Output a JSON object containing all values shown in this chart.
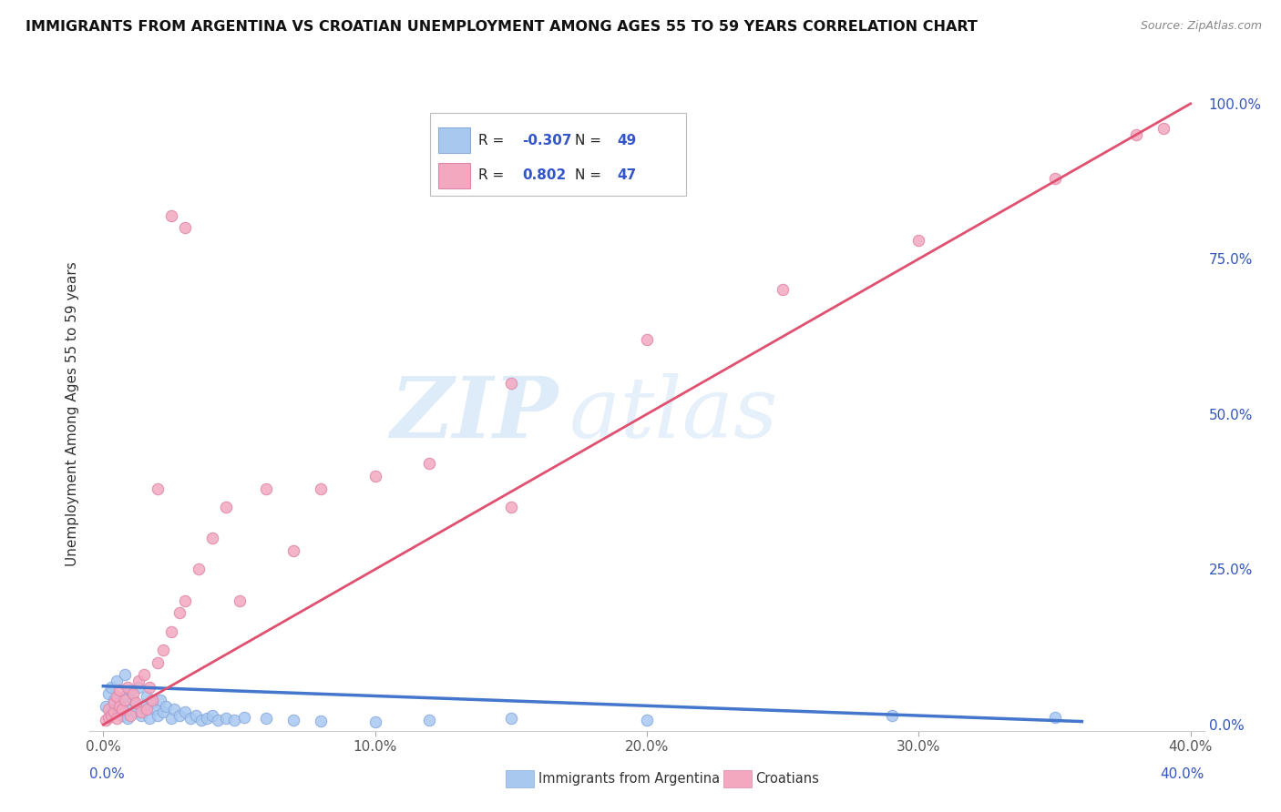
{
  "title": "IMMIGRANTS FROM ARGENTINA VS CROATIAN UNEMPLOYMENT AMONG AGES 55 TO 59 YEARS CORRELATION CHART",
  "source": "Source: ZipAtlas.com",
  "ylabel": "Unemployment Among Ages 55 to 59 years",
  "right_yticks": [
    "100.0%",
    "75.0%",
    "50.0%",
    "25.0%",
    "0.0%"
  ],
  "right_ytick_vals": [
    1.0,
    0.75,
    0.5,
    0.25,
    0.0
  ],
  "legend_entries": [
    {
      "color": "#a8c8f0",
      "label": "Immigrants from Argentina",
      "R": "-0.307",
      "N": "49"
    },
    {
      "color": "#f4a8c0",
      "label": "Croatians",
      "R": "0.802",
      "N": "47"
    }
  ],
  "watermark_zip": "ZIP",
  "watermark_atlas": "atlas",
  "argentina_scatter_x": [
    0.001,
    0.002,
    0.003,
    0.003,
    0.004,
    0.005,
    0.005,
    0.006,
    0.007,
    0.008,
    0.008,
    0.009,
    0.01,
    0.01,
    0.011,
    0.012,
    0.013,
    0.014,
    0.015,
    0.016,
    0.017,
    0.018,
    0.019,
    0.02,
    0.021,
    0.022,
    0.023,
    0.025,
    0.026,
    0.028,
    0.03,
    0.032,
    0.034,
    0.036,
    0.038,
    0.04,
    0.042,
    0.045,
    0.048,
    0.052,
    0.06,
    0.07,
    0.08,
    0.1,
    0.12,
    0.15,
    0.2,
    0.29,
    0.35
  ],
  "argentina_scatter_y": [
    0.03,
    0.05,
    0.02,
    0.06,
    0.04,
    0.025,
    0.07,
    0.035,
    0.015,
    0.045,
    0.08,
    0.01,
    0.055,
    0.025,
    0.04,
    0.02,
    0.06,
    0.015,
    0.03,
    0.045,
    0.01,
    0.035,
    0.025,
    0.015,
    0.04,
    0.02,
    0.03,
    0.01,
    0.025,
    0.015,
    0.02,
    0.01,
    0.015,
    0.008,
    0.01,
    0.015,
    0.008,
    0.01,
    0.008,
    0.012,
    0.01,
    0.008,
    0.006,
    0.005,
    0.008,
    0.01,
    0.008,
    0.015,
    0.012
  ],
  "croatian_scatter_x": [
    0.001,
    0.002,
    0.002,
    0.003,
    0.004,
    0.004,
    0.005,
    0.005,
    0.006,
    0.006,
    0.007,
    0.008,
    0.009,
    0.01,
    0.011,
    0.012,
    0.013,
    0.014,
    0.015,
    0.016,
    0.017,
    0.018,
    0.02,
    0.022,
    0.025,
    0.028,
    0.03,
    0.035,
    0.04,
    0.045,
    0.05,
    0.06,
    0.07,
    0.08,
    0.1,
    0.12,
    0.15,
    0.03,
    0.025,
    0.02,
    0.15,
    0.2,
    0.25,
    0.3,
    0.35,
    0.38,
    0.39
  ],
  "croatian_scatter_y": [
    0.008,
    0.012,
    0.025,
    0.015,
    0.02,
    0.035,
    0.01,
    0.045,
    0.03,
    0.055,
    0.025,
    0.04,
    0.06,
    0.015,
    0.05,
    0.035,
    0.07,
    0.02,
    0.08,
    0.025,
    0.06,
    0.04,
    0.1,
    0.12,
    0.15,
    0.18,
    0.2,
    0.25,
    0.3,
    0.35,
    0.2,
    0.38,
    0.28,
    0.38,
    0.4,
    0.42,
    0.35,
    0.8,
    0.82,
    0.38,
    0.55,
    0.62,
    0.7,
    0.78,
    0.88,
    0.95,
    0.96
  ],
  "argentina_line_x": [
    0.0,
    0.36
  ],
  "argentina_line_y": [
    0.062,
    0.005
  ],
  "croatian_line_x": [
    0.0,
    0.4
  ],
  "croatian_line_y": [
    0.0,
    1.0
  ],
  "scatter_color_argentina": "#a8c8f0",
  "scatter_edge_argentina": "#88aadd",
  "scatter_color_croatian": "#f4a8c0",
  "scatter_edge_croatian": "#dd88aa",
  "line_color_argentina": "#4477cc",
  "line_color_croatian": "#e05070",
  "background_color": "#ffffff",
  "grid_color": "#cccccc",
  "xlim": [
    -0.005,
    0.405
  ],
  "ylim": [
    -0.01,
    1.01
  ],
  "xtick_vals": [
    0.0,
    0.1,
    0.2,
    0.3,
    0.4
  ],
  "xtick_labels": [
    "0.0%",
    "10.0%",
    "20.0%",
    "30.0%",
    "40.0%"
  ]
}
